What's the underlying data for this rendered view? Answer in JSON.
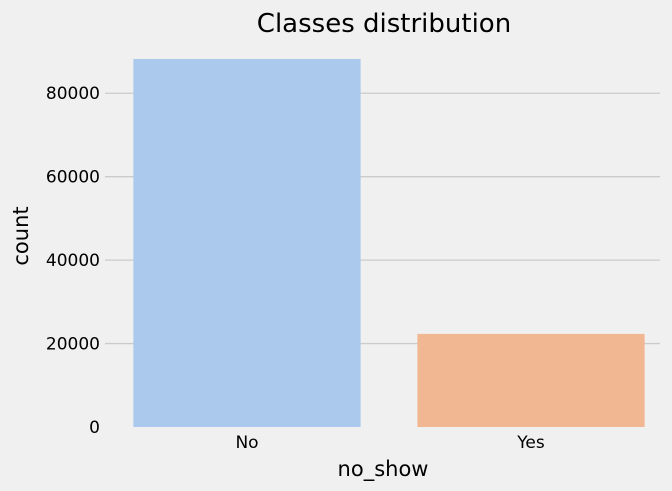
{
  "chart_data": {
    "type": "bar",
    "title": "Classes distribution",
    "xlabel": "no_show",
    "ylabel": "count",
    "categories": [
      "No",
      "Yes"
    ],
    "values": [
      88208,
      22319
    ],
    "ylim": [
      0,
      88208
    ],
    "yticks": [
      0,
      20000,
      40000,
      60000,
      80000
    ],
    "ytick_labels": [
      "0",
      "20000",
      "40000",
      "60000",
      "80000"
    ],
    "colors": [
      "#abc9ed",
      "#f1b793"
    ],
    "grid": "y",
    "legend": "none"
  }
}
